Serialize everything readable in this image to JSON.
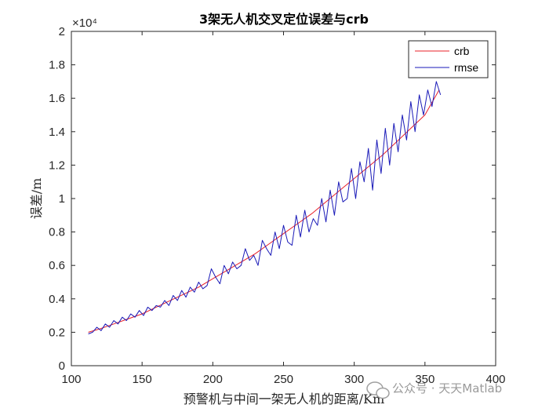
{
  "chart_data": {
    "type": "line",
    "title": "3架无人机交叉定位误差与crb",
    "xlabel": "预警机与中间一架无人机的距离/Km",
    "ylabel": "误差/m",
    "xlim": [
      100,
      400
    ],
    "ylim": [
      0,
      2
    ],
    "y_exponent": "×10⁴",
    "xticks": [
      "100",
      "150",
      "200",
      "250",
      "300",
      "350",
      "400"
    ],
    "yticks": [
      "0",
      "0.2",
      "0.4",
      "0.6",
      "0.8",
      "1",
      "1.2",
      "1.4",
      "1.6",
      "1.8",
      "2"
    ],
    "legend_position": "top-right",
    "grid": false,
    "series": [
      {
        "name": "crb",
        "color": "#e8202a",
        "x": [
          112,
          120,
          130,
          140,
          150,
          160,
          170,
          180,
          190,
          200,
          210,
          220,
          230,
          240,
          250,
          260,
          270,
          280,
          290,
          300,
          310,
          320,
          330,
          340,
          350,
          360
        ],
        "y": [
          0.2,
          0.22,
          0.25,
          0.28,
          0.31,
          0.35,
          0.39,
          0.43,
          0.47,
          0.52,
          0.57,
          0.62,
          0.67,
          0.73,
          0.79,
          0.85,
          0.91,
          0.98,
          1.05,
          1.12,
          1.19,
          1.26,
          1.34,
          1.42,
          1.5,
          1.65
        ]
      },
      {
        "name": "rmse",
        "color": "#1a1ab8",
        "x": [
          112,
          115,
          118,
          121,
          124,
          127,
          130,
          133,
          136,
          139,
          142,
          145,
          148,
          151,
          154,
          157,
          160,
          163,
          166,
          169,
          172,
          175,
          178,
          181,
          184,
          187,
          190,
          193,
          196,
          199,
          202,
          205,
          208,
          211,
          214,
          217,
          220,
          223,
          226,
          229,
          232,
          235,
          238,
          241,
          244,
          247,
          250,
          253,
          256,
          259,
          262,
          265,
          268,
          271,
          274,
          277,
          280,
          283,
          286,
          289,
          292,
          295,
          298,
          301,
          304,
          307,
          310,
          313,
          316,
          319,
          322,
          325,
          328,
          331,
          334,
          337,
          340,
          343,
          346,
          349,
          352,
          355,
          358,
          361
        ],
        "y": [
          0.19,
          0.2,
          0.23,
          0.21,
          0.25,
          0.23,
          0.27,
          0.25,
          0.29,
          0.27,
          0.31,
          0.29,
          0.33,
          0.3,
          0.35,
          0.33,
          0.36,
          0.35,
          0.39,
          0.36,
          0.42,
          0.39,
          0.45,
          0.41,
          0.47,
          0.44,
          0.5,
          0.46,
          0.48,
          0.58,
          0.53,
          0.49,
          0.6,
          0.55,
          0.62,
          0.58,
          0.6,
          0.7,
          0.63,
          0.66,
          0.6,
          0.75,
          0.7,
          0.66,
          0.8,
          0.7,
          0.84,
          0.74,
          0.72,
          0.9,
          0.77,
          0.93,
          0.8,
          0.88,
          0.84,
          1.0,
          0.86,
          1.05,
          0.9,
          1.1,
          0.98,
          1.0,
          1.18,
          1.0,
          1.22,
          1.1,
          1.3,
          1.05,
          1.35,
          1.15,
          1.42,
          1.2,
          1.45,
          1.28,
          1.5,
          1.35,
          1.58,
          1.4,
          1.62,
          1.5,
          1.65,
          1.55,
          1.7,
          1.62
        ]
      }
    ]
  },
  "watermark": "公众号 · 天天Matlab"
}
